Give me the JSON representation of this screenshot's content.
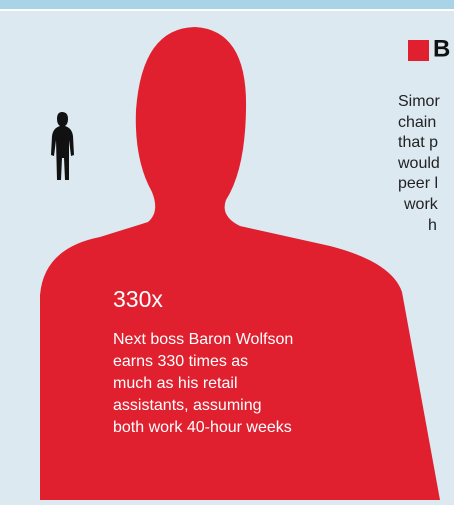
{
  "callout": {
    "figure": "330x",
    "lines": [
      "Next boss Baron Wolfson",
      "earns 330 times as",
      "much as his retail",
      "assistants, assuming",
      "both work 40-hour weeks"
    ]
  },
  "side_text": {
    "heading": "B",
    "lines": [
      "Simor",
      "chain",
      "that p",
      "would",
      "peer l",
      "work",
      "h"
    ]
  }
}
